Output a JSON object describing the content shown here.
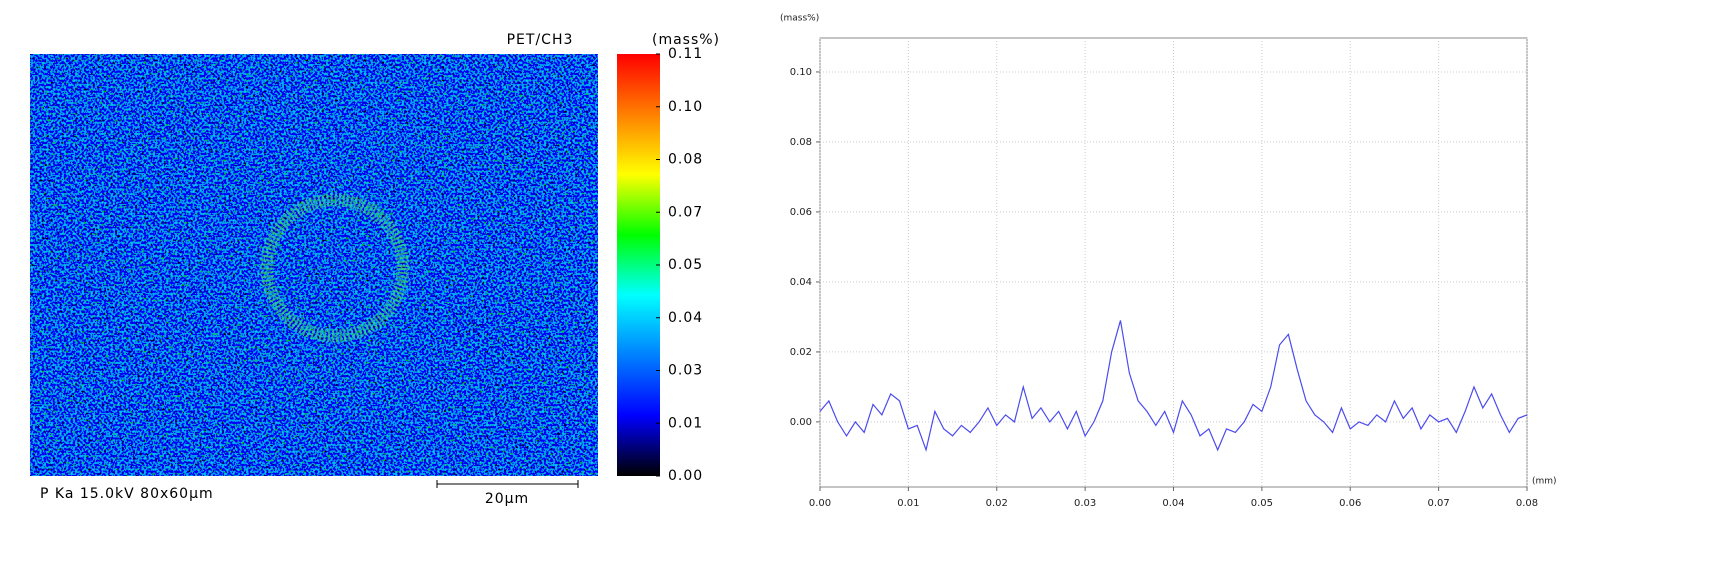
{
  "chart_data": [
    {
      "type": "heatmap",
      "title": "PET/CH3",
      "colorbar_label": "(mass%)",
      "caption": "P Ka 15.0kV 80x60µm",
      "scale_bar": "20µm",
      "colormap": [
        "#000000",
        "#0000ff",
        "#0080ff",
        "#00ffff",
        "#00ff00",
        "#ffff00",
        "#ff8000",
        "#ff0000"
      ],
      "clim": [
        0,
        0.11
      ],
      "cticks": [
        {
          "value": 0,
          "label": "0.00"
        },
        {
          "value": 0.01375,
          "label": "0.01"
        },
        {
          "value": 0.0275,
          "label": "0.03"
        },
        {
          "value": 0.04125,
          "label": "0.04"
        },
        {
          "value": 0.055,
          "label": "0.05"
        },
        {
          "value": 0.06875,
          "label": "0.07"
        },
        {
          "value": 0.0825,
          "label": "0.08"
        },
        {
          "value": 0.09625,
          "label": "0.10"
        },
        {
          "value": 0.11,
          "label": "0.11"
        }
      ]
    },
    {
      "type": "line",
      "ylabel": "(mass%)",
      "xlabel": "(mm)",
      "grid": true,
      "xlim": [
        0,
        0.08
      ],
      "ylim": [
        -0.0186,
        0.1097
      ],
      "xticks": [
        {
          "value": 0,
          "label": "0.00"
        },
        {
          "value": 0.01,
          "label": "0.01"
        },
        {
          "value": 0.02,
          "label": "0.02"
        },
        {
          "value": 0.03,
          "label": "0.03"
        },
        {
          "value": 0.04,
          "label": "0.04"
        },
        {
          "value": 0.05,
          "label": "0.05"
        },
        {
          "value": 0.06,
          "label": "0.06"
        },
        {
          "value": 0.07,
          "label": "0.07"
        },
        {
          "value": 0.08,
          "label": "0.08"
        }
      ],
      "yticks": [
        {
          "value": 0,
          "label": "0.00"
        },
        {
          "value": 0.02,
          "label": "0.02"
        },
        {
          "value": 0.04,
          "label": "0.04"
        },
        {
          "value": 0.06,
          "label": "0.06"
        },
        {
          "value": 0.08,
          "label": "0.08"
        },
        {
          "value": 0.1,
          "label": "0.10"
        }
      ],
      "x": [
        0,
        0.001,
        0.002,
        0.003,
        0.004,
        0.005,
        0.006,
        0.007,
        0.008,
        0.009,
        0.01,
        0.011,
        0.012,
        0.013,
        0.014,
        0.015,
        0.016,
        0.017,
        0.018,
        0.019,
        0.02,
        0.021,
        0.022,
        0.023,
        0.024,
        0.025,
        0.026,
        0.027,
        0.028,
        0.029,
        0.03,
        0.031,
        0.032,
        0.033,
        0.034,
        0.035,
        0.036,
        0.037,
        0.038,
        0.039,
        0.04,
        0.041,
        0.042,
        0.043,
        0.044,
        0.045,
        0.046,
        0.047,
        0.048,
        0.049,
        0.05,
        0.051,
        0.052,
        0.053,
        0.054,
        0.055,
        0.056,
        0.057,
        0.058,
        0.059,
        0.06,
        0.061,
        0.062,
        0.063,
        0.064,
        0.065,
        0.066,
        0.067,
        0.068,
        0.069,
        0.07,
        0.071,
        0.072,
        0.073,
        0.074,
        0.075,
        0.076,
        0.077,
        0.078,
        0.079,
        0.08
      ],
      "series": [
        {
          "color": "#4b4bf0",
          "values": [
            0.003,
            0.006,
            0,
            -0.004,
            0,
            -0.003,
            0.005,
            0.002,
            0.008,
            0.006,
            -0.002,
            -0.001,
            -0.008,
            0.003,
            -0.002,
            -0.004,
            -0.001,
            -0.003,
            0,
            0.004,
            -0.001,
            0.002,
            0,
            0.01,
            0.001,
            0.004,
            0,
            0.003,
            -0.002,
            0.003,
            -0.004,
            0,
            0.006,
            0.02,
            0.029,
            0.014,
            0.006,
            0.003,
            -0.001,
            0.003,
            -0.003,
            0.006,
            0.002,
            -0.004,
            -0.002,
            -0.008,
            -0.002,
            -0.003,
            0,
            0.005,
            0.003,
            0.01,
            0.022,
            0.025,
            0.015,
            0.006,
            0.002,
            0,
            -0.003,
            0.004,
            -0.002,
            0,
            -0.001,
            0.002,
            0,
            0.006,
            0.001,
            0.004,
            -0.002,
            0.002,
            0,
            0.001,
            -0.003,
            0.003,
            0.01,
            0.004,
            0.008,
            0.002,
            -0.003,
            0.001,
            0.002
          ]
        }
      ]
    }
  ]
}
